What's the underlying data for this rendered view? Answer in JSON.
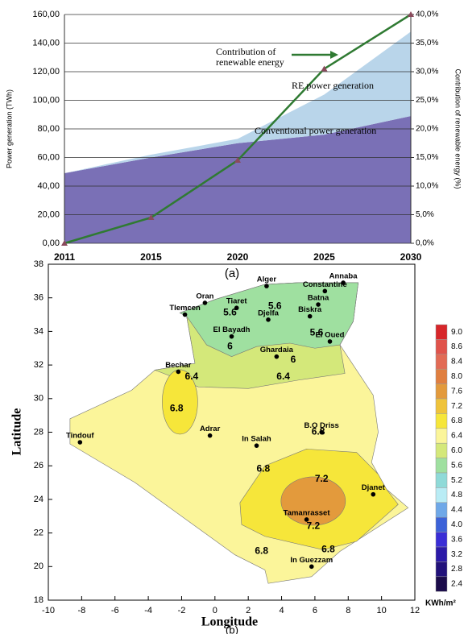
{
  "chart_data": [
    {
      "type": "stacked-area-line",
      "categories": [
        "2011",
        "2015",
        "2020",
        "2025",
        "2030"
      ],
      "series": [
        {
          "name": "Conventional power generation",
          "color": "#7a70b6",
          "values": [
            49,
            60,
            70,
            76,
            89
          ]
        },
        {
          "name": "RE power generation",
          "color": "#b9d5ea",
          "values": [
            0,
            2,
            3,
            28,
            59
          ]
        },
        {
          "name": "Contribution of renewable energy",
          "color": "#2f7a32",
          "marker_color": "#8a4a5c",
          "axis": "y2",
          "values": [
            0,
            4.5,
            14.5,
            30.5,
            40
          ]
        }
      ],
      "ylabel": "Power generation (TWh)",
      "y2label": "Contribution of renewable energy (%)",
      "ylim": [
        0,
        160
      ],
      "yticks": [
        {
          "value": 0,
          "label": "0,00"
        },
        {
          "value": 20,
          "label": "20,00"
        },
        {
          "value": 40,
          "label": "40,00"
        },
        {
          "value": 60,
          "label": "60,00"
        },
        {
          "value": 80,
          "label": "80,00"
        },
        {
          "value": 100,
          "label": "100,00"
        },
        {
          "value": 120,
          "label": "120,00"
        },
        {
          "value": 140,
          "label": "140,00"
        },
        {
          "value": 160,
          "label": "160,00"
        }
      ],
      "y2lim": [
        0,
        40
      ],
      "y2ticks": [
        {
          "value": 0,
          "label": "0,0%"
        },
        {
          "value": 5,
          "label": "5,0%"
        },
        {
          "value": 10,
          "label": "10,0%"
        },
        {
          "value": 15,
          "label": "15,0%"
        },
        {
          "value": 20,
          "label": "20,0%"
        },
        {
          "value": 25,
          "label": "25,0%"
        },
        {
          "value": 30,
          "label": "30,0%"
        },
        {
          "value": 35,
          "label": "35,0%"
        },
        {
          "value": 40,
          "label": "40,0%"
        }
      ],
      "grid": true,
      "caption": "(a)"
    },
    {
      "type": "contour-map",
      "xlabel": "Longitude",
      "ylabel": "Latitude",
      "caption": "(b)",
      "xlim": [
        -10,
        12
      ],
      "xticks": [
        -10,
        -8,
        -6,
        -4,
        -2,
        0,
        2,
        4,
        6,
        8,
        10,
        12
      ],
      "ylim": [
        18,
        38
      ],
      "yticks": [
        18,
        20,
        22,
        24,
        26,
        28,
        30,
        32,
        34,
        36,
        38
      ],
      "cities": {
        "names": [
          "Oran",
          "Tlemcen",
          "Alger",
          "Annaba",
          "Constantine",
          "Batna",
          "Biskra",
          "Tiaret",
          "Djelfa",
          "El Bayadh",
          "El Oued",
          "Ghardaia",
          "Bechar",
          "Tindouf",
          "Adrar",
          "In Salah",
          "B.O Driss",
          "Tamanrasset",
          "Djanet",
          "In Guezzam"
        ],
        "lon": [
          -0.6,
          -1.8,
          3.1,
          7.7,
          6.6,
          6.2,
          5.7,
          1.3,
          3.2,
          1.0,
          6.9,
          3.7,
          -2.2,
          -8.1,
          -0.3,
          2.5,
          6.4,
          5.5,
          9.5,
          5.8
        ],
        "lat": [
          35.7,
          35.0,
          36.7,
          36.9,
          36.4,
          35.6,
          34.9,
          35.4,
          34.7,
          33.7,
          33.4,
          32.5,
          31.6,
          27.4,
          27.8,
          27.2,
          28.0,
          22.8,
          24.3,
          20.0
        ]
      },
      "contour_labels": [
        5.6,
        5.6,
        5.6,
        6.0,
        6.0,
        6.4,
        6.4,
        6.8,
        6.8,
        6.8,
        7.2,
        7.2,
        6.8,
        6.8
      ],
      "colorbar": {
        "ticks": [
          {
            "value": 9,
            "label": "9.0"
          },
          8.6,
          8.4,
          {
            "value": 8,
            "label": "8.0"
          },
          7.6,
          7.2,
          6.8,
          6.4,
          {
            "value": 6,
            "label": "6.0"
          },
          5.6,
          5.2,
          4.8,
          4.4,
          {
            "value": 4,
            "label": "4.0"
          },
          3.6,
          3.2,
          2.8,
          2.4
        ],
        "colors": [
          "#d7262a",
          "#e0534b",
          "#e26b55",
          "#e07f40",
          "#e39a3c",
          "#efc33b",
          "#f6e63a",
          "#fbf59a",
          "#d4e87a",
          "#9fe0a0",
          "#8fdad8",
          "#b9ecf5",
          "#6fa8e8",
          "#3c62d8",
          "#3a2ed6",
          "#2b1aa8",
          "#22127a",
          "#1b0c4a"
        ],
        "label": "KWh/m²"
      }
    }
  ]
}
